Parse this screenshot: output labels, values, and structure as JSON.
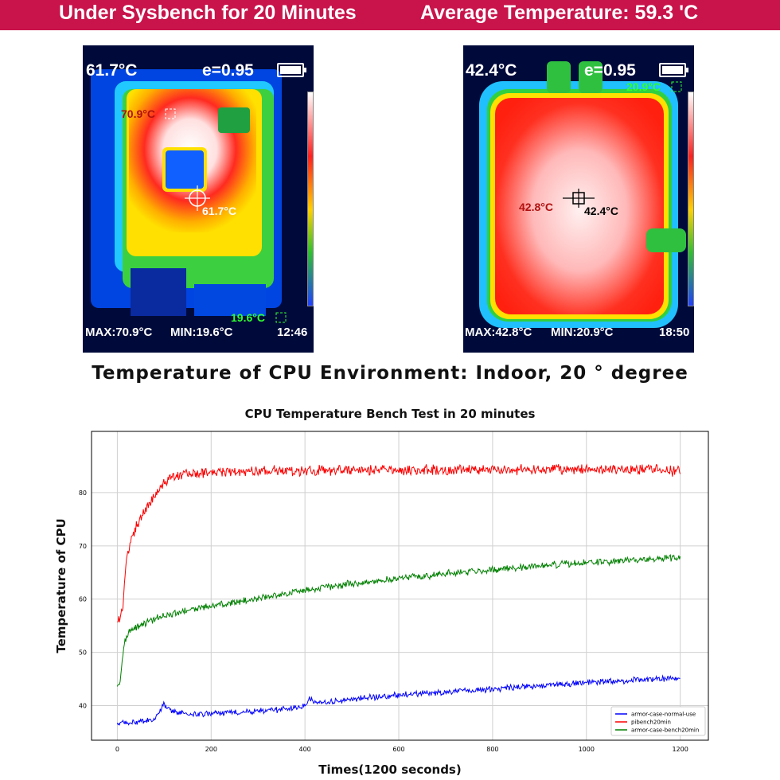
{
  "banner": {
    "left": "Under Sysbench for 20 Minutes",
    "right": "Average Temperature:  59.3 'C"
  },
  "thermal_left": {
    "reading": "61.7°C",
    "emissivity": "e=0.95",
    "max": "MAX:70.9°C",
    "min": "MIN:19.6°C",
    "time": "12:46",
    "hot_spot": "70.9°C",
    "center_spot": "61.7°C",
    "cold_spot": "19.6°C"
  },
  "thermal_right": {
    "reading": "42.4°C",
    "emissivity": "e=0.95",
    "max": "MAX:42.8°C",
    "min": "MIN:20.9°C",
    "time": "18:50",
    "cold_spot": "20.9°C",
    "hot_spot": "42.8°C",
    "center_spot": "42.4°C"
  },
  "subtitle": "Temperature of CPU Environment:  Indoor,  20 ° degree",
  "chart_data": {
    "type": "line",
    "title": "CPU Temperature Bench Test in 20 minutes",
    "xlabel": "Times(1200 seconds)",
    "ylabel": "Temperature of CPU",
    "xlim": [
      -55,
      1260
    ],
    "ylim": [
      33.5,
      91.5
    ],
    "xticks": [
      0,
      200,
      400,
      600,
      800,
      1000,
      1200
    ],
    "yticks": [
      40,
      50,
      60,
      70,
      80
    ],
    "grid": true,
    "legend_position": "bottom-right",
    "series": [
      {
        "name": "armor-case-normal-use",
        "color": "#0000ff",
        "x": [
          0,
          30,
          60,
          80,
          90,
          100,
          110,
          130,
          160,
          200,
          250,
          300,
          350,
          380,
          400,
          410,
          420,
          450,
          500,
          550,
          600,
          650,
          700,
          750,
          800,
          850,
          900,
          950,
          1000,
          1050,
          1100,
          1150,
          1200
        ],
        "y": [
          36.6,
          36.8,
          37.0,
          37.5,
          38.8,
          40.2,
          39.4,
          38.6,
          38.3,
          38.5,
          38.7,
          39.0,
          39.3,
          39.6,
          39.9,
          41.5,
          40.5,
          40.7,
          41.2,
          41.6,
          42.0,
          42.3,
          42.5,
          42.8,
          43.1,
          43.4,
          43.7,
          44.0,
          44.3,
          44.6,
          44.8,
          45.0,
          45.2
        ],
        "noise": 0.45
      },
      {
        "name": "pibench20min",
        "color": "#ff0000",
        "x": [
          0,
          8,
          12,
          16,
          20,
          28,
          40,
          55,
          70,
          85,
          100,
          115,
          140,
          180,
          250,
          350,
          450,
          550,
          650,
          750,
          850,
          950,
          1050,
          1150,
          1200
        ],
        "y": [
          56.3,
          56.8,
          59.0,
          64.0,
          67.5,
          70.5,
          73.5,
          76.0,
          78.2,
          80.0,
          82.0,
          83.2,
          83.6,
          83.8,
          84.0,
          84.1,
          84.2,
          84.2,
          84.2,
          84.3,
          84.3,
          84.3,
          84.4,
          84.4,
          84.0
        ],
        "noise": 0.75
      },
      {
        "name": "armor-case-bench20min",
        "color": "#008000",
        "x": [
          0,
          6,
          10,
          14,
          18,
          24,
          35,
          50,
          80,
          120,
          180,
          250,
          300,
          400,
          500,
          600,
          700,
          800,
          900,
          1000,
          1100,
          1150,
          1200
        ],
        "y": [
          43.6,
          44.5,
          48.0,
          51.0,
          52.5,
          53.8,
          54.5,
          55.2,
          56.3,
          57.3,
          58.4,
          59.4,
          60.1,
          61.7,
          62.9,
          63.9,
          64.8,
          65.5,
          66.3,
          66.8,
          67.3,
          67.6,
          67.8
        ],
        "noise": 0.5
      }
    ]
  }
}
